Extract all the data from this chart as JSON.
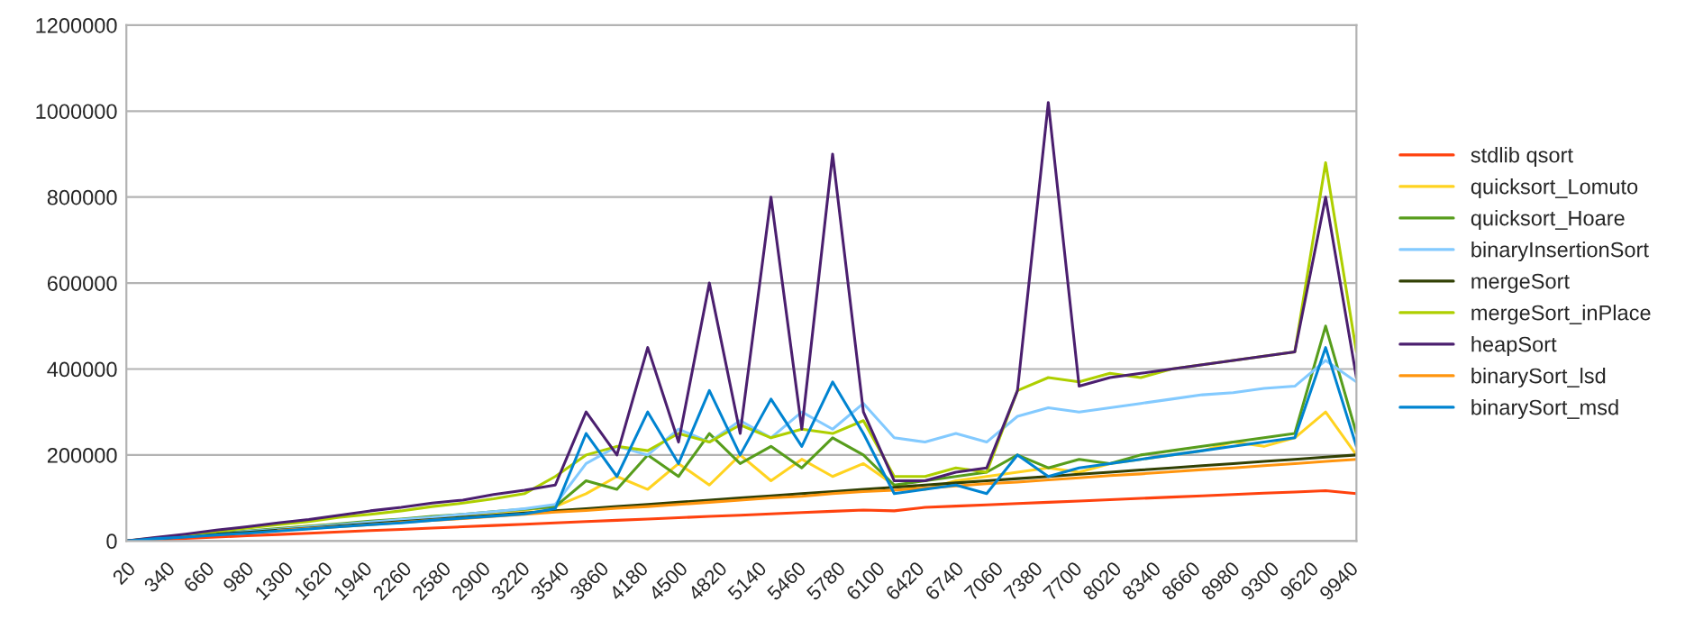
{
  "chart_data": {
    "type": "line",
    "x": [
      20,
      250,
      500,
      750,
      1000,
      1250,
      1500,
      1750,
      2000,
      2250,
      2500,
      2750,
      3000,
      3250,
      3500,
      3750,
      4000,
      4250,
      4500,
      4750,
      5000,
      5250,
      5500,
      5750,
      6000,
      6250,
      6500,
      6750,
      7000,
      7250,
      7500,
      7750,
      8000,
      8250,
      8500,
      8750,
      9000,
      9250,
      9500,
      9750,
      10000
    ],
    "series": [
      {
        "name": "stdlib qsort",
        "color": "#ff420e",
        "values": [
          0,
          3000,
          6000,
          9000,
          12000,
          15000,
          18000,
          21000,
          24000,
          27000,
          30000,
          33000,
          36000,
          39000,
          42000,
          45000,
          48000,
          51000,
          54000,
          57000,
          60000,
          63000,
          66000,
          69000,
          72000,
          70000,
          78000,
          81000,
          84000,
          87000,
          90000,
          93000,
          96000,
          99000,
          102000,
          105000,
          108000,
          111000,
          114000,
          117000,
          110000
        ]
      },
      {
        "name": "quicksort_Lomuto",
        "color": "#ffd320",
        "values": [
          null,
          null,
          null,
          null,
          null,
          28000,
          35000,
          38000,
          45000,
          50000,
          56000,
          60000,
          66000,
          72000,
          80000,
          110000,
          150000,
          120000,
          180000,
          130000,
          200000,
          140000,
          190000,
          150000,
          180000,
          130000,
          120000,
          140000,
          150000,
          160000,
          170000,
          160000,
          180000,
          190000,
          200000,
          210000,
          230000,
          220000,
          240000,
          300000,
          200000
        ]
      },
      {
        "name": "quicksort_Hoare",
        "color": "#579d1c",
        "values": [
          null,
          null,
          12000,
          17000,
          23000,
          29000,
          34000,
          40000,
          46000,
          51000,
          57000,
          62000,
          68000,
          74000,
          80000,
          140000,
          120000,
          200000,
          150000,
          250000,
          180000,
          220000,
          170000,
          240000,
          200000,
          130000,
          140000,
          150000,
          160000,
          200000,
          170000,
          190000,
          180000,
          200000,
          210000,
          220000,
          230000,
          240000,
          250000,
          500000,
          250000
        ]
      },
      {
        "name": "binaryInsertionSort",
        "color": "#83caff",
        "values": [
          null,
          null,
          null,
          15000,
          22000,
          27000,
          33000,
          38000,
          44000,
          50000,
          55000,
          62000,
          68000,
          75000,
          85000,
          180000,
          220000,
          200000,
          260000,
          230000,
          280000,
          240000,
          300000,
          260000,
          320000,
          240000,
          230000,
          250000,
          230000,
          290000,
          310000,
          300000,
          310000,
          320000,
          330000,
          340000,
          345000,
          355000,
          360000,
          420000,
          370000
        ]
      },
      {
        "name": "mergeSort",
        "color": "#314004",
        "values": [
          0,
          5000,
          10000,
          16000,
          20000,
          25000,
          30000,
          35000,
          40000,
          45000,
          50000,
          55000,
          60000,
          65000,
          70000,
          75000,
          80000,
          85000,
          90000,
          95000,
          100000,
          105000,
          110000,
          115000,
          120000,
          125000,
          130000,
          135000,
          140000,
          145000,
          150000,
          155000,
          160000,
          165000,
          170000,
          175000,
          180000,
          185000,
          190000,
          195000,
          200000
        ]
      },
      {
        "name": "mergeSort_inPlace",
        "color": "#aecf00",
        "values": [
          0,
          7000,
          14000,
          22000,
          30000,
          38000,
          45000,
          55000,
          62000,
          70000,
          80000,
          88000,
          98000,
          110000,
          150000,
          200000,
          220000,
          210000,
          250000,
          230000,
          270000,
          240000,
          260000,
          250000,
          280000,
          150000,
          150000,
          170000,
          160000,
          350000,
          380000,
          370000,
          390000,
          380000,
          400000,
          410000,
          420000,
          430000,
          440000,
          880000,
          440000
        ]
      },
      {
        "name": "heapSort",
        "color": "#4b1f6f",
        "values": [
          0,
          8000,
          16000,
          25000,
          33000,
          42000,
          50000,
          60000,
          70000,
          78000,
          88000,
          95000,
          108000,
          118000,
          130000,
          300000,
          200000,
          450000,
          230000,
          600000,
          250000,
          800000,
          260000,
          900000,
          300000,
          140000,
          140000,
          160000,
          170000,
          350000,
          1020000,
          360000,
          380000,
          390000,
          400000,
          410000,
          420000,
          430000,
          440000,
          800000,
          380000
        ]
      },
      {
        "name": "binarySort_lsd",
        "color": "#ff950e",
        "values": [
          null,
          null,
          null,
          null,
          null,
          24000,
          29000,
          33000,
          38000,
          43000,
          48000,
          52000,
          57000,
          62000,
          67000,
          71000,
          76000,
          80000,
          85000,
          90000,
          95000,
          100000,
          104000,
          110000,
          115000,
          118000,
          123000,
          128000,
          133000,
          137000,
          142000,
          147000,
          152000,
          156000,
          161000,
          166000,
          170000,
          175000,
          180000,
          185000,
          190000
        ]
      },
      {
        "name": "binarySort_msd",
        "color": "#0084d1",
        "values": [
          0,
          5000,
          9000,
          14000,
          18000,
          23000,
          28000,
          33000,
          38000,
          42000,
          48000,
          53000,
          58000,
          63000,
          75000,
          250000,
          150000,
          300000,
          180000,
          350000,
          200000,
          330000,
          220000,
          370000,
          250000,
          110000,
          120000,
          130000,
          110000,
          200000,
          150000,
          170000,
          180000,
          190000,
          200000,
          210000,
          220000,
          230000,
          240000,
          450000,
          220000
        ]
      }
    ],
    "xlim": [
      20,
      10000
    ],
    "xticks": [
      20,
      340,
      660,
      980,
      1300,
      1620,
      1940,
      2260,
      2580,
      2900,
      3220,
      3540,
      3860,
      4180,
      4500,
      4820,
      5140,
      5460,
      5780,
      6100,
      6420,
      6740,
      7060,
      7380,
      7700,
      8020,
      8340,
      8660,
      8980,
      9300,
      9620,
      9940
    ],
    "ylim": [
      0,
      1200000
    ],
    "yticks": [
      0,
      200000,
      400000,
      600000,
      800000,
      1000000,
      1200000
    ],
    "grid": "y",
    "legend": "right"
  }
}
